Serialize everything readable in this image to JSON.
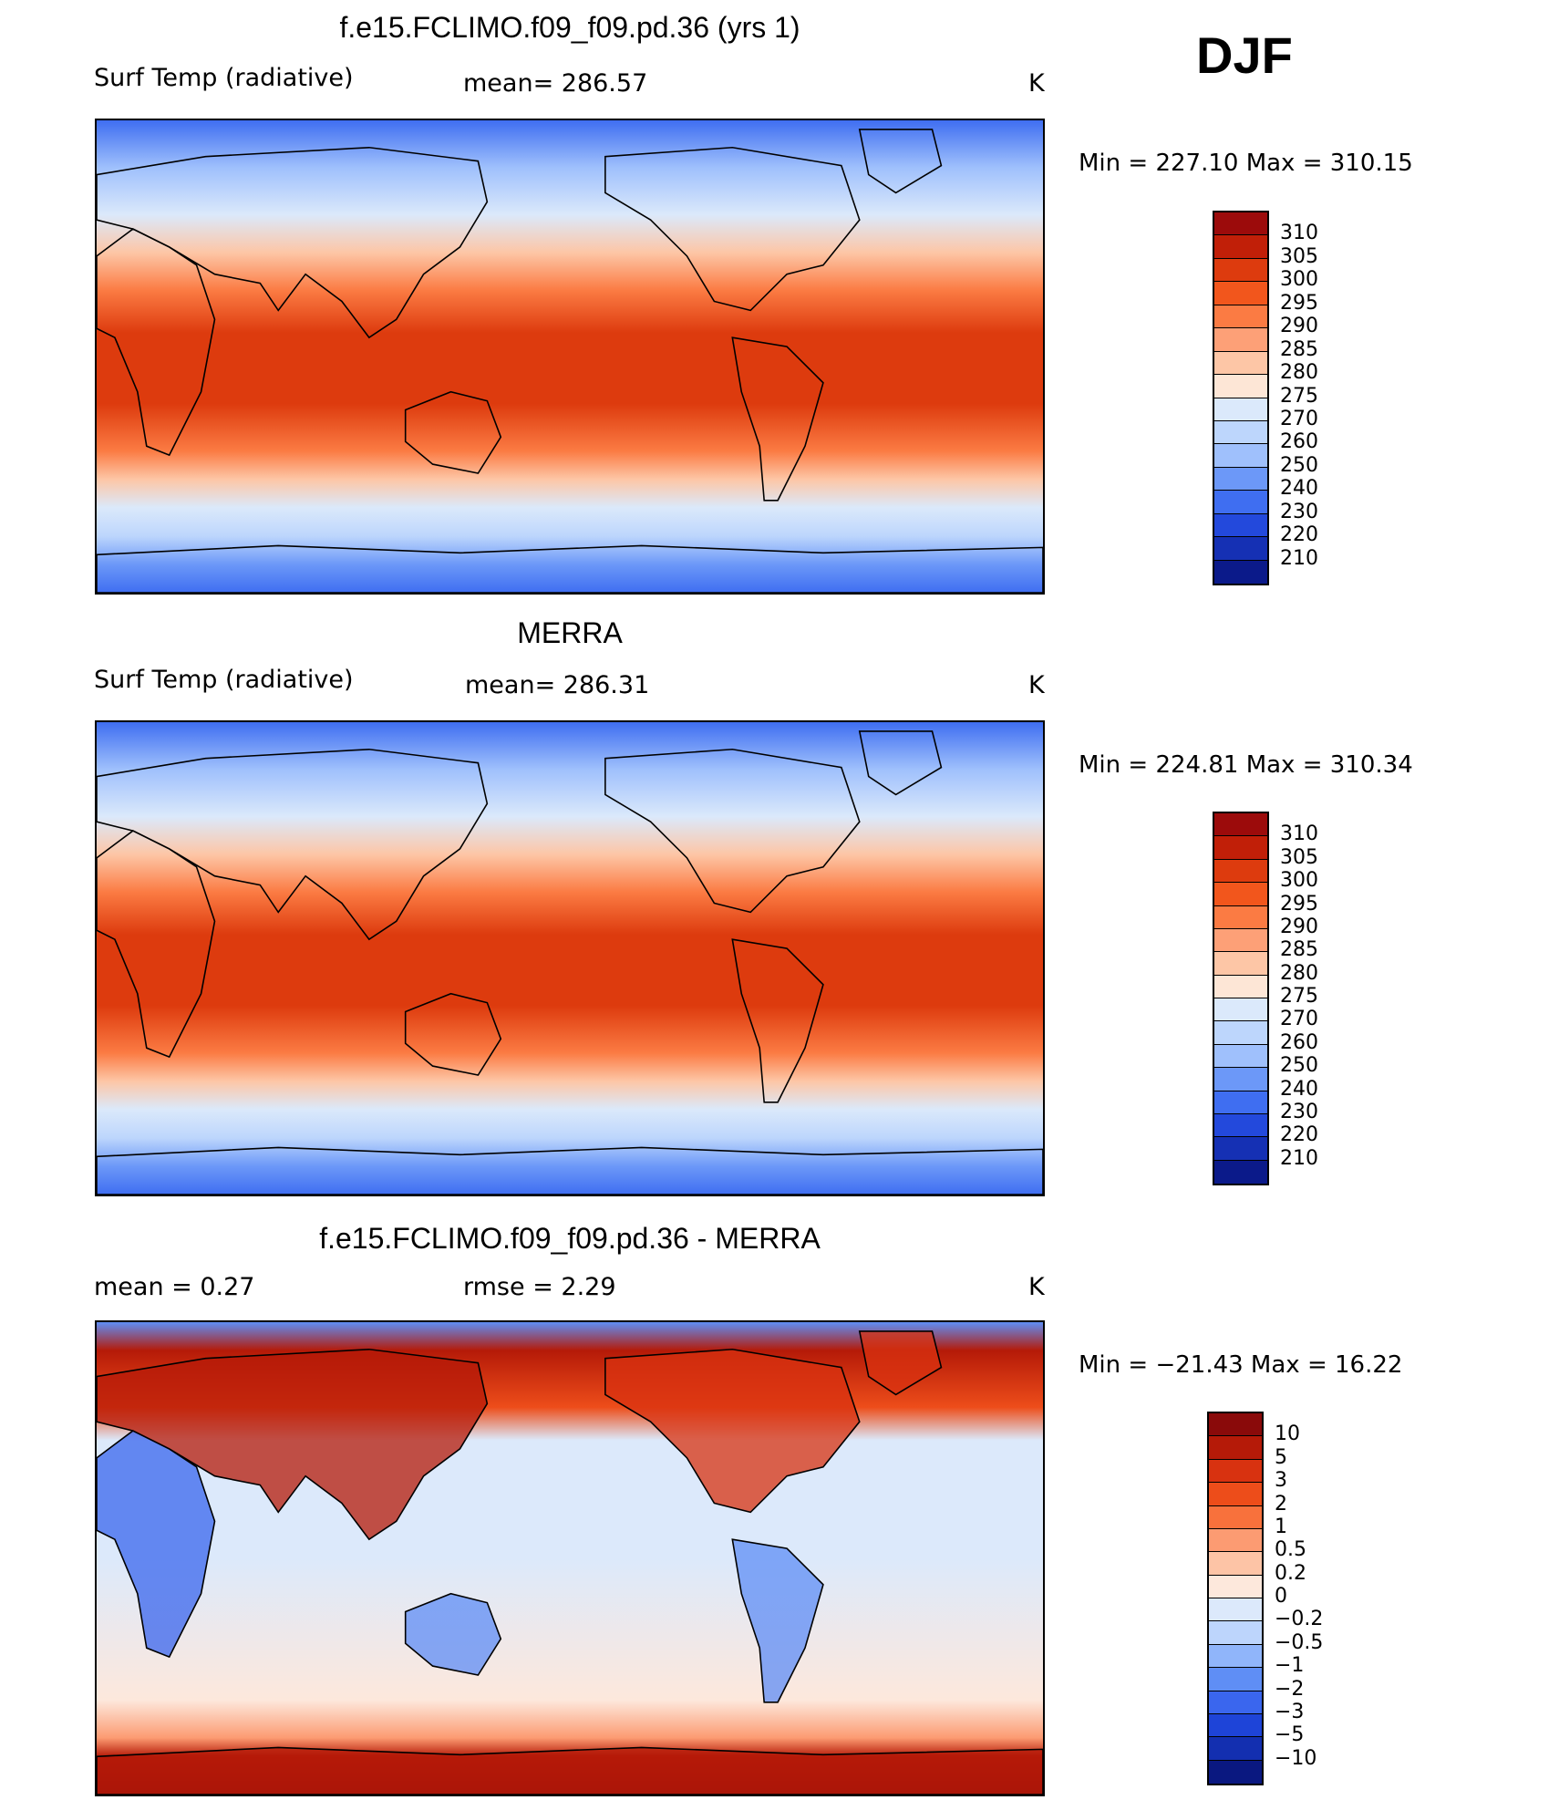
{
  "season": "DJF",
  "panels": [
    {
      "id": "model",
      "title": "f.e15.FCLIMO.f09_f09.pd.36 (yrs 1)",
      "left_label": "Surf Temp (radiative)",
      "center_label": "mean=  286.57",
      "units": "K",
      "minmax": "Min  =  227.10  Max  =  310.15",
      "colorbar_labels": [
        "310",
        "305",
        "300",
        "295",
        "290",
        "285",
        "280",
        "275",
        "270",
        "260",
        "250",
        "240",
        "230",
        "220",
        "210"
      ],
      "colorbar_colors": [
        "#9c0b0b",
        "#c11f08",
        "#dd3b0e",
        "#f2561c",
        "#fb7b43",
        "#fda077",
        "#fdc6a6",
        "#fde6d6",
        "#dbe9fb",
        "#bdd6fc",
        "#9fc0fc",
        "#6c98f8",
        "#3f6ef1",
        "#2349dc",
        "#1530b4",
        "#0b1a8a"
      ],
      "map_type": "absolute"
    },
    {
      "id": "obs",
      "title": "MERRA",
      "left_label": "Surf Temp (radiative)",
      "center_label": "mean=  286.31",
      "units": "K",
      "minmax": "Min  =  224.81  Max  =  310.34",
      "colorbar_labels": [
        "310",
        "305",
        "300",
        "295",
        "290",
        "285",
        "280",
        "275",
        "270",
        "260",
        "250",
        "240",
        "230",
        "220",
        "210"
      ],
      "colorbar_colors": [
        "#9c0b0b",
        "#c11f08",
        "#dd3b0e",
        "#f2561c",
        "#fb7b43",
        "#fda077",
        "#fdc6a6",
        "#fde6d6",
        "#dbe9fb",
        "#bdd6fc",
        "#9fc0fc",
        "#6c98f8",
        "#3f6ef1",
        "#2349dc",
        "#1530b4",
        "#0b1a8a"
      ],
      "map_type": "absolute"
    },
    {
      "id": "diff",
      "title": "f.e15.FCLIMO.f09_f09.pd.36 - MERRA",
      "left_label": "mean =      0.27",
      "center_label": "rmse =      2.29",
      "units": "K",
      "minmax": "Min  =  −21.43  Max  =    16.22",
      "colorbar_labels": [
        "10",
        "5",
        "3",
        "2",
        "1",
        "0.5",
        "0.2",
        "0",
        "−0.2",
        "−0.5",
        "−1",
        "−2",
        "−3",
        "−5",
        "−10"
      ],
      "colorbar_colors": [
        "#8a0a0a",
        "#b51a08",
        "#d83210",
        "#ed4d1a",
        "#f8713c",
        "#fc9b72",
        "#fdc4a6",
        "#fde8dc",
        "#dce9fb",
        "#bdd5fc",
        "#90b5fa",
        "#5f8ef5",
        "#3a66ee",
        "#1e44d8",
        "#132fb0",
        "#0a1880"
      ],
      "map_type": "difference"
    }
  ],
  "chart_data": [
    {
      "type": "heatmap",
      "title": "f.e15.FCLIMO.f09_f09.pd.36 (yrs 1)",
      "variable": "Surf Temp (radiative)",
      "units": "K",
      "mean": 286.57,
      "min": 227.1,
      "max": 310.15,
      "contour_levels": [
        210,
        220,
        230,
        240,
        250,
        260,
        270,
        275,
        280,
        285,
        290,
        295,
        300,
        305,
        310
      ]
    },
    {
      "type": "heatmap",
      "title": "MERRA",
      "variable": "Surf Temp (radiative)",
      "units": "K",
      "mean": 286.31,
      "min": 224.81,
      "max": 310.34,
      "contour_levels": [
        210,
        220,
        230,
        240,
        250,
        260,
        270,
        275,
        280,
        285,
        290,
        295,
        300,
        305,
        310
      ]
    },
    {
      "type": "heatmap",
      "title": "f.e15.FCLIMO.f09_f09.pd.36 - MERRA",
      "units": "K",
      "mean": 0.27,
      "rmse": 2.29,
      "min": -21.43,
      "max": 16.22,
      "contour_levels": [
        -10,
        -5,
        -3,
        -2,
        -1,
        -0.5,
        -0.2,
        0,
        0.2,
        0.5,
        1,
        2,
        3,
        5,
        10
      ]
    }
  ]
}
